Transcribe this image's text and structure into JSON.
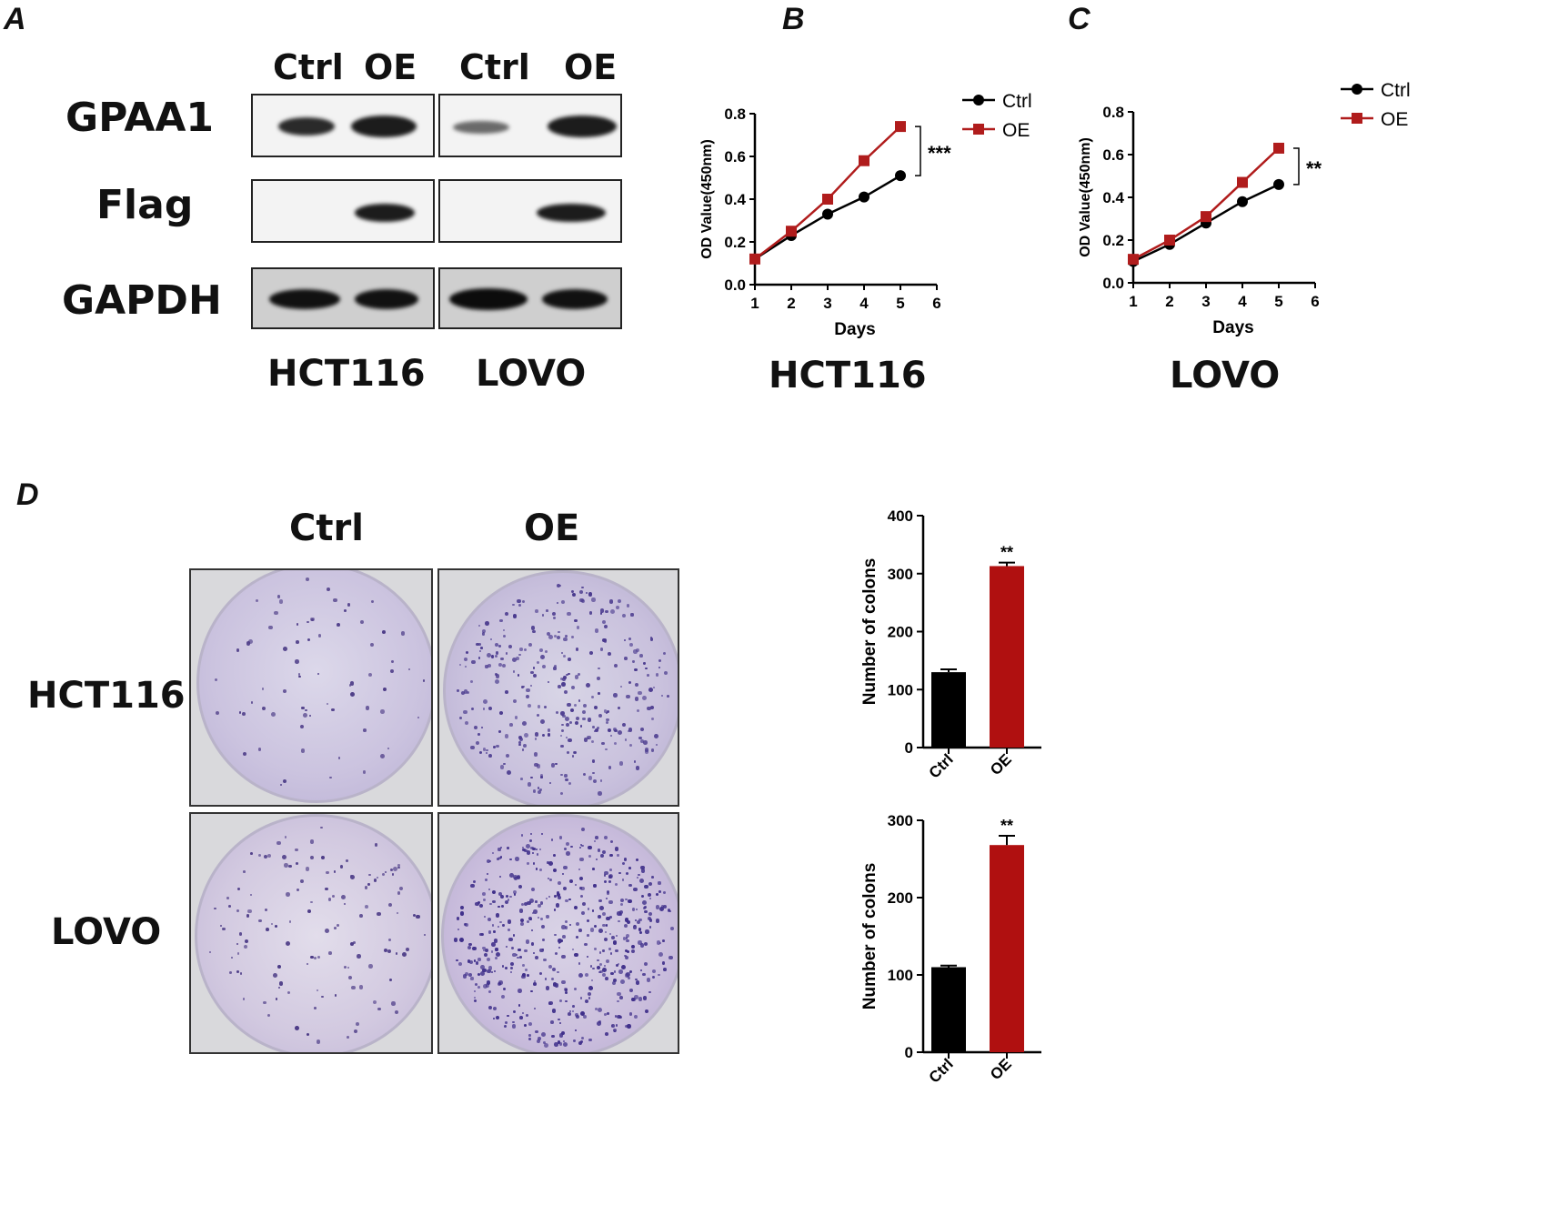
{
  "panels": {
    "a": "A",
    "b": "B",
    "c": "C",
    "d": "D"
  },
  "western": {
    "columns": [
      "Ctrl",
      "OE",
      "Ctrl",
      "OE"
    ],
    "rows": [
      "GPAA1",
      "Flag",
      "GAPDH"
    ],
    "cells": [
      "HCT116",
      "LOVO"
    ]
  },
  "growth": {
    "colors": {
      "ctrl": "#000000",
      "oe": "#b01c1c"
    },
    "titles": [
      "HCT116",
      "LOVO"
    ]
  },
  "colony": {
    "columns": [
      "Ctrl",
      "OE"
    ],
    "rows": [
      "HCT116",
      "LOVO"
    ]
  },
  "chart_data": [
    {
      "type": "line",
      "caption": "HCT116",
      "x": [
        1,
        2,
        3,
        4,
        5
      ],
      "xticks": [
        "1",
        "2",
        "3",
        "4",
        "5",
        "6"
      ],
      "yticks": [
        "0.0",
        "0.2",
        "0.4",
        "0.6",
        "0.8"
      ],
      "series": [
        {
          "name": "Ctrl",
          "values": [
            0.12,
            0.23,
            0.33,
            0.41,
            0.51
          ],
          "color": "#000000",
          "marker": "circle"
        },
        {
          "name": "OE",
          "values": [
            0.12,
            0.25,
            0.4,
            0.58,
            0.74
          ],
          "color": "#b01c1c",
          "marker": "square"
        }
      ],
      "xlabel": "Days",
      "ylabel": "OD Value(450nm)",
      "xlim": [
        1,
        6
      ],
      "ylim": [
        0,
        0.8
      ],
      "significance": "***",
      "legend": "top-right"
    },
    {
      "type": "line",
      "caption": "LOVO",
      "x": [
        1,
        2,
        3,
        4,
        5
      ],
      "xticks": [
        "1",
        "2",
        "3",
        "4",
        "5",
        "6"
      ],
      "yticks": [
        "0.0",
        "0.2",
        "0.4",
        "0.6",
        "0.8"
      ],
      "series": [
        {
          "name": "Ctrl",
          "values": [
            0.1,
            0.18,
            0.28,
            0.38,
            0.46
          ],
          "color": "#000000",
          "marker": "circle"
        },
        {
          "name": "OE",
          "values": [
            0.11,
            0.2,
            0.31,
            0.47,
            0.63
          ],
          "color": "#b01c1c",
          "marker": "square"
        }
      ],
      "xlabel": "Days",
      "ylabel": "OD Value(450nm)",
      "xlim": [
        1,
        6
      ],
      "ylim": [
        0,
        0.8
      ],
      "significance": "**",
      "legend": "top-right"
    },
    {
      "type": "bar",
      "categories": [
        "Ctrl",
        "OE"
      ],
      "values": [
        130,
        313
      ],
      "errors": [
        5,
        6
      ],
      "colors": [
        "#000000",
        "#b01010"
      ],
      "ylabel": "Number of colons",
      "yticks": [
        "0",
        "100",
        "200",
        "300",
        "400"
      ],
      "ylim": [
        0,
        400
      ],
      "significance": "**"
    },
    {
      "type": "bar",
      "categories": [
        "Ctrl",
        "OE"
      ],
      "values": [
        110,
        268
      ],
      "errors": [
        2,
        12
      ],
      "colors": [
        "#000000",
        "#b01010"
      ],
      "ylabel": "Number of colons",
      "yticks": [
        "0",
        "100",
        "200",
        "300"
      ],
      "ylim": [
        0,
        300
      ],
      "significance": "**"
    }
  ]
}
